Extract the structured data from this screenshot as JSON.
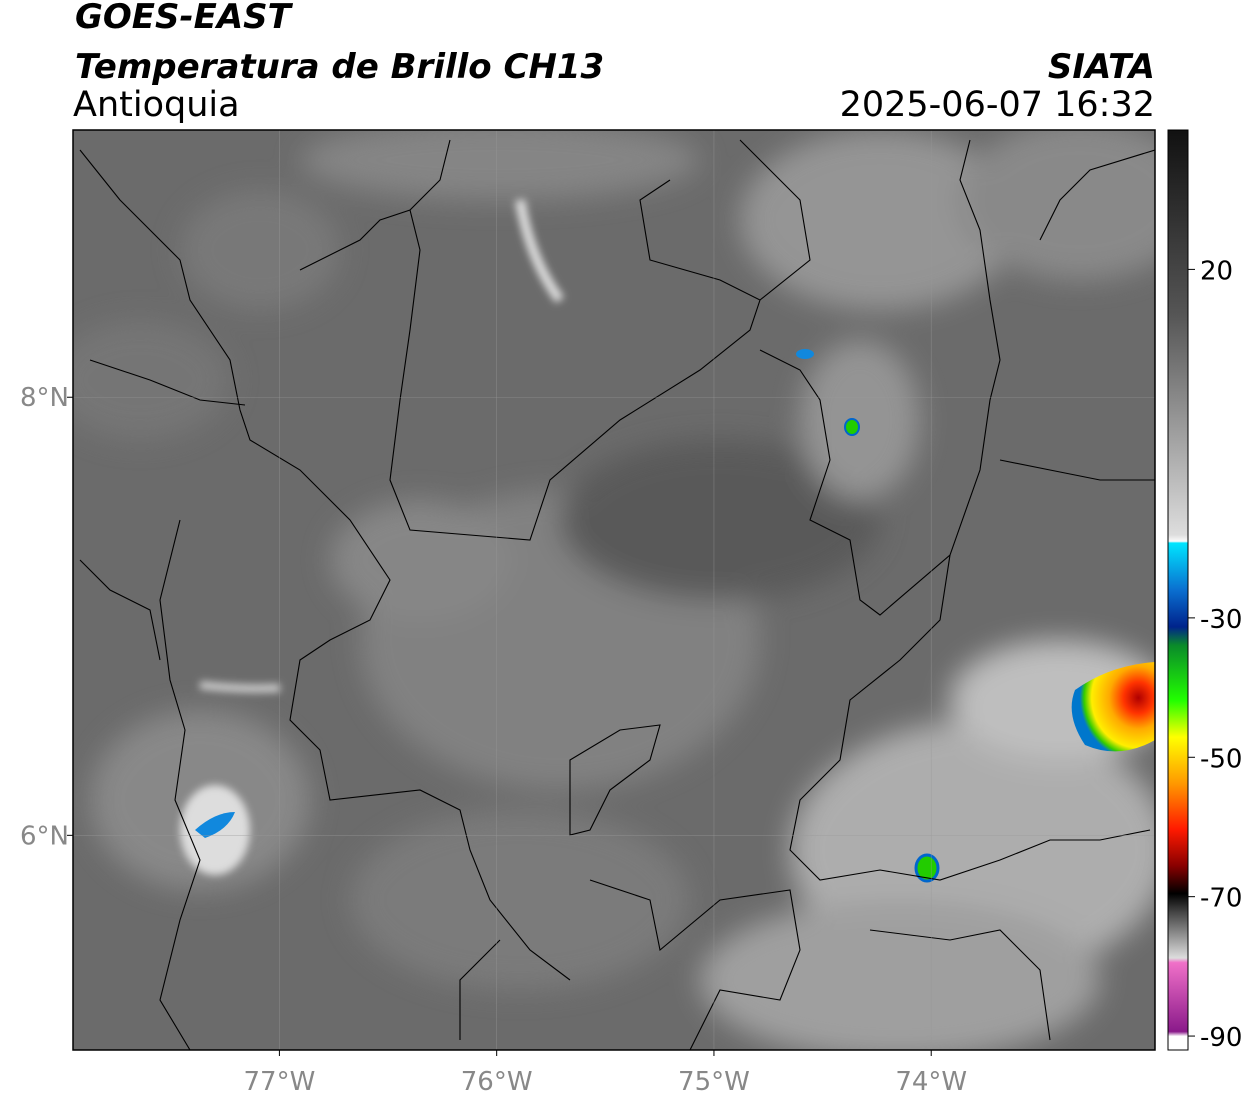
{
  "header": {
    "title": "GOES-EAST",
    "subtitle": "Temperatura de Brillo CH13",
    "region": "Antioquia",
    "source": "SIATA",
    "datetime": "2025-06-07 16:32"
  },
  "map": {
    "xlim": [
      -77.95,
      -72.97
    ],
    "ylim": [
      5.02,
      9.22
    ],
    "xticks": [
      {
        "value": -77,
        "label": "77°W"
      },
      {
        "value": -76,
        "label": "76°W"
      },
      {
        "value": -75,
        "label": "75°W"
      },
      {
        "value": -74,
        "label": "74°W"
      }
    ],
    "yticks": [
      {
        "value": 8,
        "label": "8°N"
      },
      {
        "value": 6,
        "label": "6°N"
      }
    ],
    "grid": true
  },
  "colorbar": {
    "lim": [
      -92,
      40
    ],
    "ticks": [
      20,
      -30,
      -50,
      -70,
      -90
    ]
  }
}
